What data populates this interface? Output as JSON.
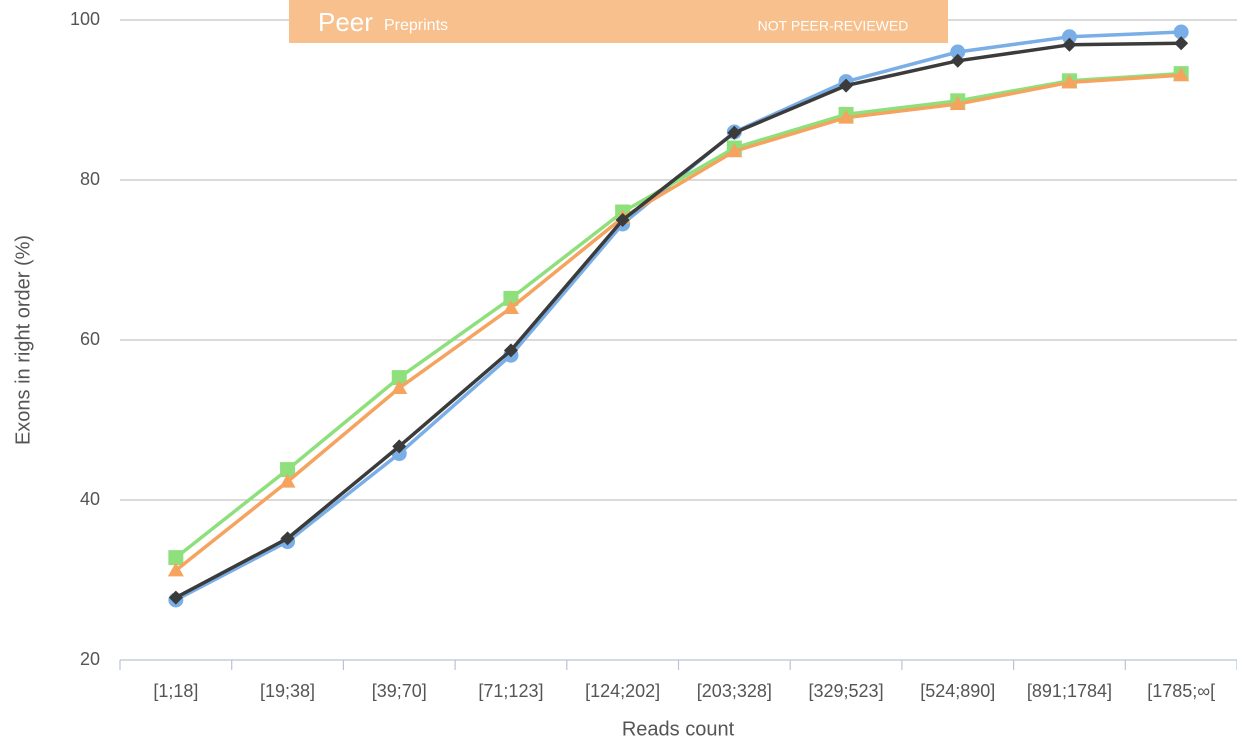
{
  "chart_data": {
    "type": "line",
    "watermark": {
      "brand": "Peer",
      "product": "Preprints",
      "notice": "NOT PEER-REVIEWED"
    },
    "ylabel": "Exons in right order (%)",
    "xlabel": "Reads count",
    "categories": [
      "[1;18]",
      "[19;38]",
      "[39;70]",
      "[71;123]",
      "[124;202]",
      "[203;328]",
      "[329;523]",
      "[524;890]",
      "[891;1784]",
      "[1785;∞["
    ],
    "ylim": [
      20,
      100
    ],
    "yticks": [
      20,
      40,
      60,
      80,
      100
    ],
    "grid": true,
    "series": [
      {
        "color": "#7aaee6",
        "marker": "circle",
        "values": [
          27.5,
          34.8,
          45.8,
          58.1,
          74.5,
          86.0,
          92.3,
          96.0,
          97.9,
          98.5
        ]
      },
      {
        "color": "#8ee07c",
        "marker": "square",
        "values": [
          32.8,
          43.8,
          55.3,
          65.2,
          76.0,
          84.0,
          88.2,
          89.9,
          92.4,
          93.3
        ]
      },
      {
        "color": "#f5a35e",
        "marker": "triangle",
        "values": [
          31.2,
          42.3,
          54.0,
          64.0,
          75.3,
          83.6,
          87.8,
          89.5,
          92.2,
          93.1
        ]
      },
      {
        "color": "#3b3b3b",
        "marker": "diamond",
        "values": [
          27.8,
          35.2,
          46.7,
          58.7,
          75.0,
          85.9,
          91.8,
          94.9,
          96.9,
          97.1
        ]
      }
    ]
  }
}
